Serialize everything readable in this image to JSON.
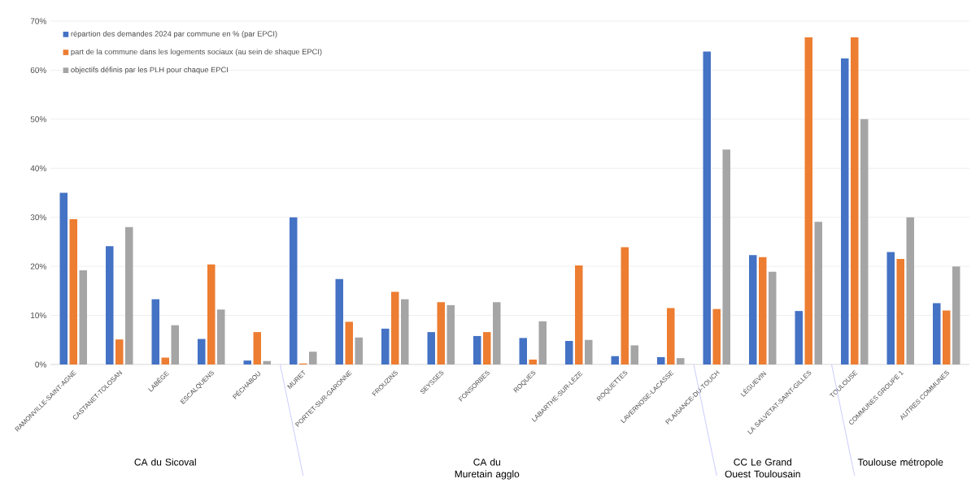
{
  "chart_data": {
    "type": "bar",
    "categories": [
      "RAMONVILLE-SAINT-AGNE",
      "CASTANET-TOLOSAN",
      "LABÈGE",
      "ESCALQUENS",
      "PÉCHABOU",
      "MURET",
      "PORTET-SUR-GARONNE",
      "FROUZINS",
      "SEYSSES",
      "FONSORBES",
      "ROQUES",
      "LABARTHE-SUR-LÈZE",
      "ROQUETTES",
      "LAVERNOSE-LACASSE",
      "PLAISANCE-DU-TOUCH",
      "LÉGUEVIN",
      "LA SALVETAT-SAINT-GILLES",
      "TOULOUSE",
      "COMMUNES GROUPE 1",
      "AUTRES COMMUNES"
    ],
    "series": [
      {
        "name": "répartion des demandes 2024 par commune en % (par EPCI)",
        "color": "#4472c4",
        "values": [
          35,
          24.1,
          13.3,
          5.2,
          0.8,
          30,
          17.4,
          7.3,
          6.6,
          5.8,
          5.4,
          4.8,
          1.7,
          1.5,
          63.8,
          22.3,
          10.9,
          62.4,
          22.9,
          12.5
        ]
      },
      {
        "name": "part de la commune dans les logements sociaux (au sein de shaque EPCI)",
        "color": "#ed7d31",
        "values": [
          29.6,
          5.1,
          1.4,
          20.4,
          6.6,
          0.2,
          8.7,
          14.8,
          12.7,
          6.6,
          1.0,
          20.2,
          23.9,
          11.5,
          11.3,
          21.9,
          66.7,
          66.7,
          21.5,
          11.0
        ]
      },
      {
        "name": "objectifs définis par les PLH pour chaque EPCI",
        "color": "#a5a5a5",
        "values": [
          19.2,
          28.0,
          8.0,
          11.2,
          0.7,
          2.6,
          5.5,
          13.3,
          12.1,
          12.7,
          8.8,
          5.0,
          3.9,
          1.3,
          43.8,
          18.9,
          29.1,
          50.0,
          30,
          20
        ]
      }
    ],
    "ylim": [
      0,
      70
    ],
    "yticks": [
      {
        "value": 0,
        "label": "0%"
      },
      {
        "value": 10,
        "label": "10%"
      },
      {
        "value": 20,
        "label": "20%"
      },
      {
        "value": 30,
        "label": "30%"
      },
      {
        "value": 40,
        "label": "40%"
      },
      {
        "value": 50,
        "label": "50%"
      },
      {
        "value": 60,
        "label": "60%"
      },
      {
        "value": 70,
        "label": "70%"
      }
    ],
    "grid": "y",
    "legend": "top left",
    "annotations": [
      "CA du Sicoval",
      "CA du Muretain agglo",
      "CC Le Grand Ouest Toulousain",
      "Toulouse métropole"
    ]
  }
}
